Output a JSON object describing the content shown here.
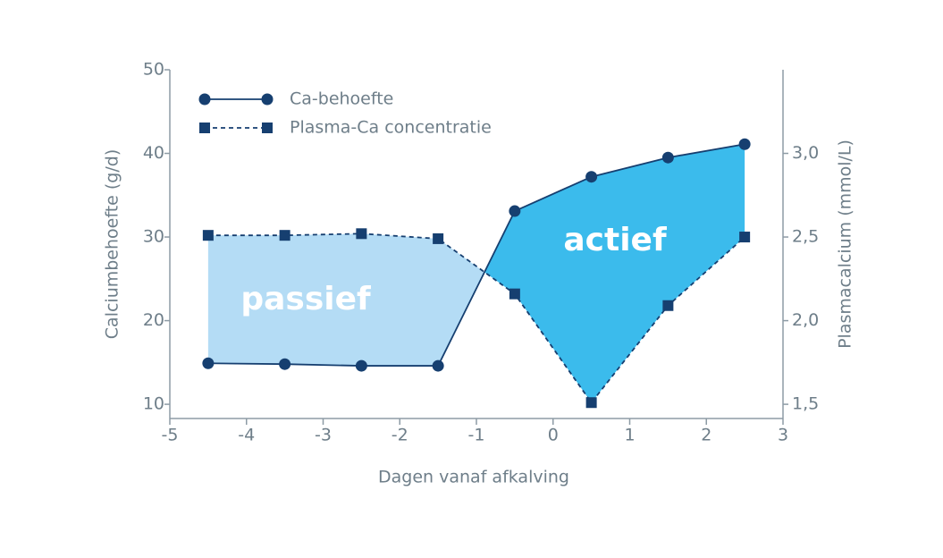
{
  "chart_data": {
    "type": "line",
    "x_label": "Dagen vanaf afkalving",
    "y_label": "Calciumbehoefte (g/d)",
    "y2_label": "Plasmacalcium (mmol/L)",
    "x": [
      -4.5,
      -3.5,
      -2.5,
      -1.5,
      -0.5,
      0.5,
      1.5,
      2.5
    ],
    "series": [
      {
        "name": "Ca-behoefte",
        "color": "#163f70",
        "marker": "circle",
        "dash": "solid",
        "values": [
          14.9,
          14.8,
          14.6,
          14.6,
          33.1,
          37.2,
          39.5,
          41.1
        ]
      },
      {
        "name": "Plasma-Ca concentratie",
        "color": "#163f70",
        "marker": "square",
        "dash": "dashed",
        "axis": "y2",
        "values": [
          2.51,
          2.51,
          2.52,
          2.49,
          2.16,
          1.51,
          2.09,
          2.5
        ]
      }
    ],
    "xlim": [
      -5,
      3
    ],
    "xticks": [
      -5,
      -4,
      -3,
      -2,
      -1,
      0,
      1,
      2,
      3
    ],
    "ylim": [
      8.3,
      50
    ],
    "yticks": [
      10,
      20,
      30,
      40,
      50
    ],
    "y2lim": [
      1.415,
      3.5
    ],
    "y2ticks": [
      {
        "value": 1.5,
        "label": "1,5"
      },
      {
        "value": 2.0,
        "label": "2,0"
      },
      {
        "value": 2.5,
        "label": "2,5"
      },
      {
        "value": 3.0,
        "label": "3,0"
      }
    ],
    "annotations": [
      {
        "text": "passief",
        "color": "#b4dcf5"
      },
      {
        "text": "actief",
        "color": "#3bbbec"
      }
    ]
  }
}
